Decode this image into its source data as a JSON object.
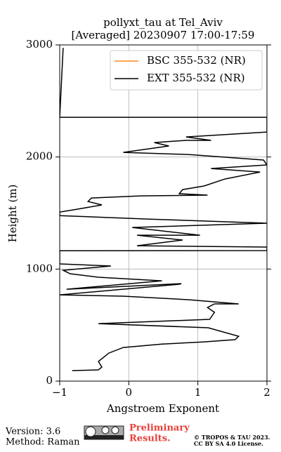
{
  "chart_data": {
    "type": "profile",
    "title": "pollyxt_tau at Tel_Aviv",
    "subtitle": "[Averaged] 20230907 17:00-17:59",
    "x_label": "Angstroem Exponent",
    "y_label": "Height (m)",
    "y": [
      94,
      100,
      125,
      175,
      250,
      300,
      330,
      350,
      370,
      400,
      476,
      513,
      551,
      614,
      657,
      689,
      689,
      726,
      758,
      770,
      864,
      870,
      820,
      895,
      927,
      958,
      989,
      1027,
      1046,
      1163,
      1165,
      1196,
      1208,
      1259,
      1302,
      1302,
      1371,
      1409,
      1446,
      1477,
      1509,
      1534,
      1572,
      1603,
      1634,
      1653,
      1660,
      1672,
      1709,
      1741,
      1803,
      1866,
      1897,
      1929,
      1973,
      2022,
      2041,
      2098,
      2129,
      2148,
      2148,
      2179,
      2223,
      2354,
      2354,
      2974
    ],
    "series": [
      {
        "name": "BSC 355-532 (NR)",
        "color": "#ff8c1a",
        "values": [
          null,
          null,
          null,
          null,
          null,
          null,
          null,
          null,
          null,
          null,
          null,
          null,
          null,
          null,
          null,
          null,
          null,
          null,
          null,
          null,
          null,
          null,
          null,
          null,
          null,
          null,
          null,
          null,
          null,
          null,
          null,
          null,
          null,
          null,
          null,
          null,
          null,
          null,
          null,
          null,
          null,
          null,
          null,
          null,
          null,
          null,
          null,
          null,
          null,
          null,
          null,
          null,
          null,
          null,
          null,
          null,
          null,
          null,
          null,
          null,
          null,
          null,
          null,
          null,
          null,
          null
        ]
      },
      {
        "name": "EXT 355-532 (NR)",
        "color": "#000000",
        "values": [
          -0.82,
          -0.44,
          -0.39,
          -0.44,
          -0.29,
          -0.08,
          0.48,
          1.09,
          1.54,
          1.59,
          1.15,
          -0.44,
          1.17,
          1.24,
          1.14,
          1.24,
          1.59,
          0.88,
          -0.08,
          -1.0,
          0.73,
          0.76,
          -0.9,
          0.48,
          -0.44,
          -0.85,
          -0.95,
          -0.26,
          -1.0,
          -1.0,
          2.0,
          2.0,
          0.12,
          0.78,
          0.12,
          1.03,
          0.05,
          2.0,
          0.27,
          -1.0,
          -1.0,
          -0.75,
          -0.39,
          -0.59,
          -0.54,
          0.17,
          1.14,
          0.73,
          0.78,
          1.09,
          1.39,
          1.9,
          1.19,
          2.0,
          1.95,
          0.88,
          -0.08,
          0.58,
          0.37,
          0.83,
          1.19,
          0.83,
          2.0,
          2.0,
          -1.0,
          -0.95
        ]
      }
    ],
    "xlim": [
      -1,
      2
    ],
    "ylim": [
      0,
      3000
    ],
    "xticks": [
      {
        "value": -1,
        "label": "−1"
      },
      0,
      1,
      2
    ],
    "yticks": [
      0,
      1000,
      2000,
      3000
    ],
    "grid": true,
    "legend": "upper right"
  },
  "footer": {
    "version": "Version: 3.6",
    "method": "Method: Raman",
    "status": "Preliminary Results.",
    "copyright": "© TROPOS & TAU 2023.",
    "license": "CC BY SA 4.0 License."
  }
}
